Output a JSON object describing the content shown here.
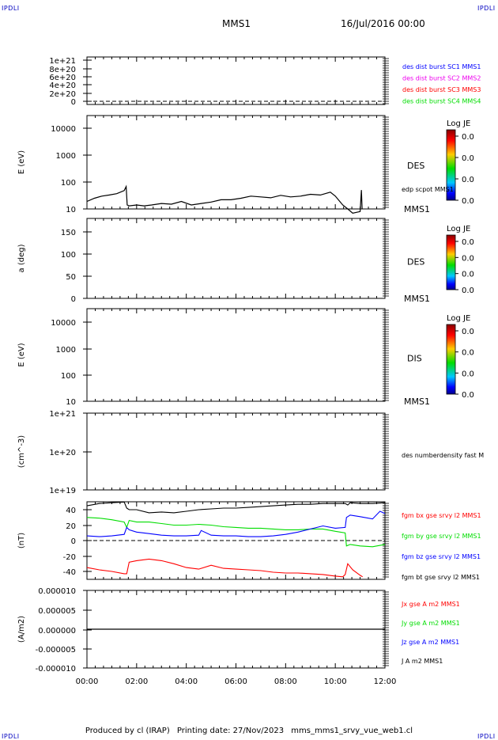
{
  "header": {
    "corner_label": "IPDLI",
    "spacecraft": "MMS1",
    "datetime": "16/Jul/2016 00:00"
  },
  "footer": {
    "produced_by": "Produced by cl (IRAP)",
    "printing_date": "Printing date: 27/Nov/2023",
    "file_name": "mms_mms1_srvy_vue_web1.cl"
  },
  "colors": {
    "black": "#000000",
    "red": "#ff0000",
    "green": "#00dd00",
    "blue": "#0000ff",
    "magenta": "#ee00ee",
    "dashed": "#000000"
  },
  "chart_data": [
    {
      "type": "line",
      "ylabel": "",
      "y_ticks": [
        "1e+21",
        "8e+20",
        "6e+20",
        "4e+20",
        "2e+20",
        "0"
      ],
      "ylim": [
        0,
        1.1e+21
      ],
      "legend": [
        {
          "text": "des dist burst SC1 MMS1",
          "color": "#0000ff"
        },
        {
          "text": "des dist burst SC2 MMS2",
          "color": "#ee00ee"
        },
        {
          "text": "des dist burst SC3 MMS3",
          "color": "#ff0000"
        },
        {
          "text": "des dist burst SC4 MMS4",
          "color": "#00dd00"
        }
      ],
      "series": []
    },
    {
      "type": "heatmap",
      "ylabel": "E (eV)",
      "y_scale": "log",
      "y_ticks": [
        "10000",
        "1000",
        "100",
        "10"
      ],
      "ylim": [
        10,
        15000
      ],
      "label_right": "DES",
      "label_bottom": "MMS1",
      "overlay_label": "edp scpot MMS1",
      "colorbar": {
        "title": "Log JE",
        "ticks": [
          "0.0",
          "0.0",
          "0.0",
          "0.0"
        ]
      },
      "series": [
        {
          "name": "edp scpot MMS1",
          "color": "#000000",
          "x_hours": [
            0.0,
            0.3,
            0.6,
            0.9,
            1.2,
            1.5,
            1.58,
            1.62,
            1.7,
            2.0,
            2.3,
            2.6,
            3.0,
            3.4,
            3.8,
            4.2,
            4.6,
            5.0,
            5.4,
            5.8,
            6.2,
            6.6,
            7.0,
            7.4,
            7.8,
            8.2,
            8.6,
            9.0,
            9.4,
            9.8,
            10.0,
            10.3,
            10.5,
            10.7,
            11.0,
            11.05,
            11.08
          ],
          "y_values": [
            19,
            25,
            30,
            33,
            37,
            48,
            68,
            14,
            13,
            14,
            13,
            14,
            16,
            15,
            19,
            14,
            16,
            18,
            22,
            22,
            25,
            30,
            28,
            26,
            32,
            28,
            30,
            35,
            33,
            42,
            30,
            14,
            10,
            7,
            8,
            50,
            10
          ]
        }
      ]
    },
    {
      "type": "heatmap",
      "ylabel": "a (deg)",
      "y_ticks": [
        "150",
        "100",
        "50",
        "0"
      ],
      "ylim": [
        0,
        180
      ],
      "label_right": "DES",
      "label_bottom": "MMS1",
      "colorbar": {
        "title": "Log JE",
        "ticks": [
          "0.0",
          "0.0",
          "0.0",
          "0.0"
        ]
      },
      "series": []
    },
    {
      "type": "heatmap",
      "ylabel": "E (eV)",
      "y_scale": "log",
      "y_ticks": [
        "10000",
        "1000",
        "100",
        "10"
      ],
      "ylim": [
        10,
        15000
      ],
      "label_right": "DIS",
      "label_bottom": "MMS1",
      "colorbar": {
        "title": "Log JE",
        "ticks": [
          "0.0",
          "0.0",
          "0.0",
          "0.0"
        ]
      },
      "series": []
    },
    {
      "type": "line",
      "ylabel": "(cm^-3)",
      "y_scale": "log",
      "y_ticks": [
        "1e+21",
        "1e+20",
        "1e+19"
      ],
      "ylim": [
        1e+19,
        1e+21
      ],
      "legend": [
        {
          "text": "des numberdensity fast M",
          "color": "#000000"
        }
      ],
      "series": []
    },
    {
      "type": "line",
      "ylabel": "(nT)",
      "y_ticks": [
        "40",
        "20",
        "0",
        "-20",
        "-40"
      ],
      "ylim": [
        -50,
        50
      ],
      "legend": [
        {
          "text": "fgm bx gse srvy l2 MMS1",
          "color": "#ff0000"
        },
        {
          "text": "fgm by gse srvy l2 MMS1",
          "color": "#00dd00"
        },
        {
          "text": "fgm bz gse srvy l2 MMS1",
          "color": "#0000ff"
        },
        {
          "text": "fgm bt gse srvy l2 MMS1",
          "color": "#000000"
        }
      ],
      "series": [
        {
          "name": "fgm bt gse srvy l2 MMS1",
          "color": "#000000",
          "x_hours": [
            0,
            0.5,
            1.0,
            1.5,
            1.6,
            1.7,
            2.0,
            2.5,
            3.0,
            3.5,
            4.0,
            4.5,
            5.0,
            5.5,
            6.0,
            6.5,
            7.0,
            7.5,
            8.0,
            8.5,
            9.0,
            9.5,
            10.0,
            10.4,
            10.5,
            10.6,
            11.0,
            11.5,
            12.0
          ],
          "y_values": [
            45,
            48,
            49,
            50,
            42,
            40,
            40,
            36,
            37,
            36,
            38,
            40,
            41,
            42,
            42,
            43,
            44,
            45,
            46,
            47,
            47,
            48,
            48,
            48,
            46,
            49,
            48,
            48,
            49
          ]
        },
        {
          "name": "fgm by gse srvy l2 MMS1",
          "color": "#00dd00",
          "x_hours": [
            0,
            0.5,
            1.0,
            1.5,
            1.6,
            1.7,
            2.0,
            2.5,
            3.0,
            3.5,
            4.0,
            4.5,
            5.0,
            5.5,
            6.0,
            6.5,
            7.0,
            7.5,
            8.0,
            8.5,
            9.0,
            9.5,
            10.0,
            10.4,
            10.45,
            10.6,
            11.0,
            11.5,
            12.0
          ],
          "y_values": [
            30,
            29,
            27,
            24,
            17,
            26,
            24,
            24,
            22,
            20,
            20,
            21,
            20,
            18,
            17,
            16,
            16,
            15,
            14,
            14,
            15,
            15,
            12,
            10,
            -7,
            -5,
            -7,
            -8,
            -5
          ]
        },
        {
          "name": "fgm bz gse srvy l2 MMS1",
          "color": "#0000ff",
          "x_hours": [
            0,
            0.5,
            1.0,
            1.5,
            1.6,
            1.7,
            2.0,
            2.5,
            3.0,
            3.5,
            4.0,
            4.5,
            4.6,
            5.0,
            5.5,
            6.0,
            6.5,
            7.0,
            7.5,
            8.0,
            8.5,
            9.0,
            9.5,
            10.0,
            10.4,
            10.45,
            10.6,
            11.0,
            11.5,
            11.8,
            12.0
          ],
          "y_values": [
            6,
            5,
            6,
            8,
            17,
            14,
            11,
            9,
            7,
            6,
            6,
            7,
            13,
            7,
            6,
            6,
            5,
            5,
            6,
            8,
            11,
            15,
            19,
            16,
            17,
            30,
            33,
            31,
            28,
            38,
            35
          ]
        },
        {
          "name": "fgm bx gse srvy l2 MMS1",
          "color": "#ff0000",
          "x_hours": [
            0,
            0.5,
            1.0,
            1.5,
            1.6,
            1.7,
            2.0,
            2.5,
            3.0,
            3.5,
            4.0,
            4.5,
            5.0,
            5.5,
            6.0,
            6.5,
            7.0,
            7.5,
            8.0,
            8.5,
            9.0,
            9.5,
            10.0,
            10.3,
            10.4,
            10.5,
            10.7,
            11.0,
            11.1
          ],
          "y_values": [
            -35,
            -38,
            -40,
            -43,
            -43,
            -28,
            -26,
            -24,
            -26,
            -30,
            -35,
            -37,
            -32,
            -36,
            -37,
            -38,
            -39,
            -41,
            -42,
            -42,
            -43,
            -44,
            -46,
            -47,
            -44,
            -30,
            -38,
            -45,
            -47
          ]
        }
      ]
    },
    {
      "type": "line",
      "ylabel": "(A/m2)",
      "y_ticks": [
        "0.000010",
        "0.000005",
        "0.000000",
        "-0.000005",
        "-0.000010"
      ],
      "ylim": [
        -1e-05,
        1e-05
      ],
      "x_ticks": [
        "00:00",
        "02:00",
        "04:00",
        "06:00",
        "08:00",
        "10:00",
        "12:00"
      ],
      "xlim_hours": [
        0,
        12
      ],
      "legend": [
        {
          "text": "Jx gse A m2 MMS1",
          "color": "#ff0000"
        },
        {
          "text": "Jy gse A m2 MMS1",
          "color": "#00dd00"
        },
        {
          "text": "Jz gse A m2 MMS1",
          "color": "#0000ff"
        },
        {
          "text": "J A m2 MMS1",
          "color": "#000000"
        }
      ],
      "series": [
        {
          "name": "J A m2 MMS1",
          "color": "#000000",
          "x_hours": [
            0,
            1,
            2,
            3,
            4,
            5,
            6,
            7,
            8,
            9,
            10,
            11,
            12
          ],
          "y_values": [
            0,
            0,
            0,
            0,
            0,
            0,
            0,
            0,
            0,
            0,
            0,
            0,
            0
          ]
        }
      ]
    }
  ]
}
